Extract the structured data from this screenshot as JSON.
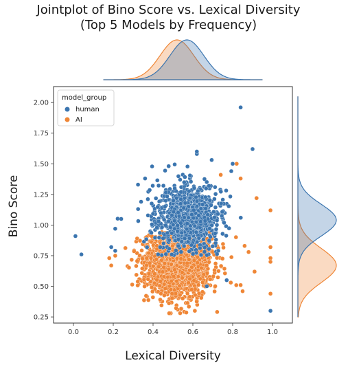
{
  "chart_data": {
    "type": "scatter",
    "title": "Jointplot of Bino Score vs. Lexical Diversity",
    "subtitle": "(Top 5 Models by Frequency)",
    "xlabel": "Lexical Diversity",
    "ylabel": "Bino Score",
    "xlim": [
      -0.1,
      1.1
    ],
    "ylim": [
      0.2,
      2.13
    ],
    "x_ticks": [
      "0.0",
      "0.2",
      "0.4",
      "0.6",
      "0.8",
      "1.0"
    ],
    "y_ticks": [
      "0.25",
      "0.50",
      "0.75",
      "1.00",
      "1.25",
      "1.50",
      "1.75",
      "2.00"
    ],
    "grid": false,
    "legend_position": "top-left",
    "legend_title": "model_group",
    "series": [
      {
        "name": "human",
        "color": "#3b75af",
        "center": {
          "x": 0.57,
          "y": 1.07
        },
        "spread": {
          "x": 0.085,
          "y": 0.14
        },
        "count": 900,
        "outliers": [
          {
            "x": 0.01,
            "y": 0.91
          },
          {
            "x": 0.04,
            "y": 0.76
          },
          {
            "x": 0.84,
            "y": 1.96
          },
          {
            "x": 0.9,
            "y": 1.62
          },
          {
            "x": 0.99,
            "y": 0.3
          },
          {
            "x": 0.62,
            "y": 1.58
          },
          {
            "x": 0.8,
            "y": 1.5
          },
          {
            "x": 0.19,
            "y": 0.82
          },
          {
            "x": 0.21,
            "y": 0.79
          },
          {
            "x": 0.21,
            "y": 0.97
          },
          {
            "x": 0.24,
            "y": 1.05
          },
          {
            "x": 0.36,
            "y": 1.38
          },
          {
            "x": 0.77,
            "y": 0.55
          },
          {
            "x": 0.67,
            "y": 0.5
          },
          {
            "x": 0.62,
            "y": 1.6
          }
        ]
      },
      {
        "name": "AI",
        "color": "#ef8636",
        "center": {
          "x": 0.52,
          "y": 0.68
        },
        "spread": {
          "x": 0.085,
          "y": 0.14
        },
        "count": 1500,
        "outliers": [
          {
            "x": 0.82,
            "y": 1.5
          },
          {
            "x": 0.84,
            "y": 1.38
          },
          {
            "x": 0.92,
            "y": 1.22
          },
          {
            "x": 0.99,
            "y": 1.12
          },
          {
            "x": 0.99,
            "y": 0.82
          },
          {
            "x": 0.99,
            "y": 0.73
          },
          {
            "x": 0.99,
            "y": 0.7
          },
          {
            "x": 0.99,
            "y": 0.44
          },
          {
            "x": 0.91,
            "y": 0.62
          },
          {
            "x": 0.88,
            "y": 0.78
          },
          {
            "x": 0.86,
            "y": 0.83
          },
          {
            "x": 0.84,
            "y": 0.51
          },
          {
            "x": 0.85,
            "y": 0.46
          },
          {
            "x": 0.18,
            "y": 0.73
          },
          {
            "x": 0.21,
            "y": 0.75
          },
          {
            "x": 0.19,
            "y": 0.67
          },
          {
            "x": 0.74,
            "y": 1.41
          },
          {
            "x": 0.61,
            "y": 0.3
          }
        ]
      }
    ],
    "marginal_x": {
      "human": {
        "mean": 0.57,
        "sd": 0.085
      },
      "AI": {
        "mean": 0.52,
        "sd": 0.085
      }
    },
    "marginal_y": {
      "human": {
        "mean": 1.04,
        "sd": 0.13
      },
      "AI": {
        "mean": 0.67,
        "sd": 0.14
      }
    }
  }
}
